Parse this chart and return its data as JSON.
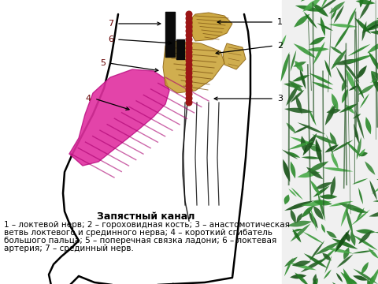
{
  "title": "Запястный канал",
  "description_lines": [
    "1 – локтевой нерв; 2 – гороховидная кость; 3 – анастомотическая",
    "ветвь локтевого и срединного нерва; 4 – короткий сгибатель",
    "большого пальца; 5 – поперечная связка ладони; 6 – локтевая",
    "артерия; 7 – срединный нерв."
  ],
  "bg_color": "#ffffff",
  "title_fontsize": 9,
  "desc_fontsize": 7.5
}
